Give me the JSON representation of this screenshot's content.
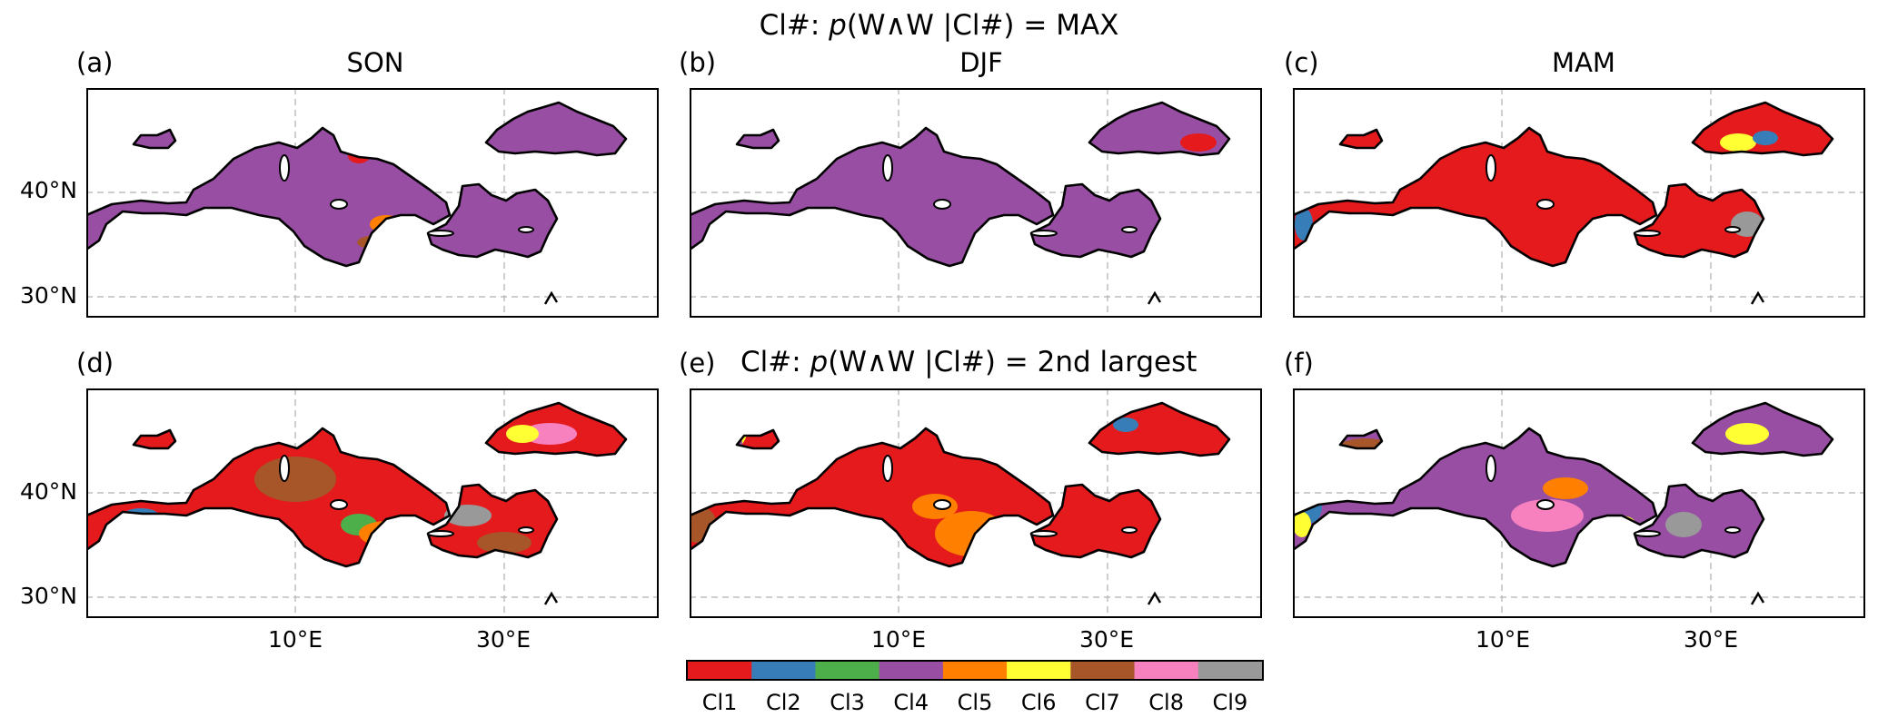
{
  "title": {
    "prefix": "Cl#: ",
    "p": "p",
    "expr": "(W∧W |Cl#) = MAX"
  },
  "subtitle_e": {
    "prefix": "Cl#: ",
    "p": "p",
    "expr": "(W∧W |Cl#) = 2nd largest"
  },
  "panels": [
    {
      "letter": "(a)",
      "season": "SON",
      "dominant": "#984ea3"
    },
    {
      "letter": "(b)",
      "season": "DJF",
      "dominant": "#984ea3"
    },
    {
      "letter": "(c)",
      "season": "MAM",
      "dominant": "#e41a1c"
    },
    {
      "letter": "(d)",
      "season": "",
      "dominant": "#e41a1c"
    },
    {
      "letter": "(e)",
      "season": "",
      "dominant": "#e41a1c"
    },
    {
      "letter": "(f)",
      "season": "",
      "dominant": "#984ea3"
    }
  ],
  "axes": {
    "lat_ticks": [
      "40°N",
      "30°N"
    ],
    "lon_ticks": [
      "10°E",
      "30°E"
    ]
  },
  "colorbar": {
    "labels": [
      "Cl1",
      "Cl2",
      "Cl3",
      "Cl4",
      "Cl5",
      "Cl6",
      "Cl7",
      "Cl8",
      "Cl9"
    ],
    "colors": [
      "#e41a1c",
      "#377eb8",
      "#4daf4a",
      "#984ea3",
      "#ff7f00",
      "#ffff33",
      "#a65628",
      "#f781bf",
      "#999999"
    ]
  }
}
